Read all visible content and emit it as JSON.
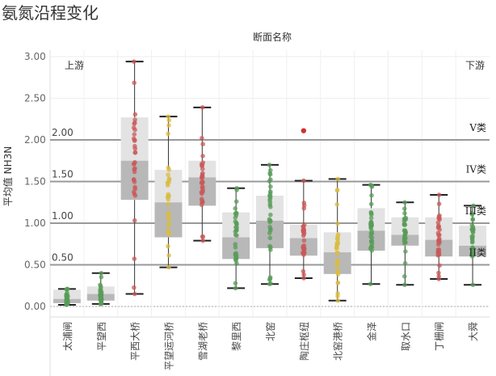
{
  "title": "氨氮沿程变化",
  "chart_data": {
    "type": "box",
    "title": "氨氮沿程变化",
    "xlabel": "断面名称",
    "ylabel": "平均值 NH3N",
    "ylim": [
      -0.1,
      3.05
    ],
    "yticks": [
      "3.00",
      "2.50",
      "2.00",
      "1.50",
      "1.00",
      "0.50",
      "0.00"
    ],
    "ytick_values": [
      3.0,
      2.5,
      2.0,
      1.5,
      1.0,
      0.5,
      0.0
    ],
    "upstream_label": "上游",
    "downstream_label": "下游",
    "reference_lines": [
      {
        "value": 2.0,
        "label": "2.00",
        "class_label": "V类"
      },
      {
        "value": 1.5,
        "label": "1.50",
        "class_label": "IV类"
      },
      {
        "value": 1.0,
        "label": "1.00",
        "class_label": "III类"
      },
      {
        "value": 0.5,
        "label": "0.50",
        "class_label": "II类"
      }
    ],
    "categories": [
      "太浦闸",
      "平望西",
      "平西大桥",
      "平望运河桥",
      "雪湖老桥",
      "黎里西",
      "北窑",
      "陶庄枢纽",
      "北窑港桥",
      "金泽",
      "取水口",
      "丁栅闸",
      "大舜"
    ],
    "colors": [
      "#3a8a3a",
      "#3a8a3a",
      "#c03a3a",
      "#d4b020",
      "#c03a3a",
      "#3a8a3a",
      "#3a8a3a",
      "#c03a3a",
      "#d4b020",
      "#3a8a3a",
      "#3a8a3a",
      "#c03a3a",
      "#3a8a3a"
    ],
    "boxes": [
      {
        "min": 0.02,
        "q1": 0.04,
        "median": 0.09,
        "q3": 0.2,
        "max": 0.21
      },
      {
        "min": 0.03,
        "q1": 0.07,
        "median": 0.15,
        "q3": 0.24,
        "max": 0.4
      },
      {
        "min": 0.15,
        "q1": 1.28,
        "median": 1.75,
        "q3": 2.27,
        "max": 2.94
      },
      {
        "min": 0.47,
        "q1": 0.83,
        "median": 1.25,
        "q3": 1.64,
        "max": 2.28
      },
      {
        "min": 0.79,
        "q1": 1.21,
        "median": 1.55,
        "q3": 1.75,
        "max": 2.39
      },
      {
        "min": 0.22,
        "q1": 0.57,
        "median": 0.83,
        "q3": 1.13,
        "max": 1.42
      },
      {
        "min": 0.27,
        "q1": 0.7,
        "median": 1.03,
        "q3": 1.33,
        "max": 1.7
      },
      {
        "min": 0.34,
        "q1": 0.61,
        "median": 0.82,
        "q3": 0.98,
        "max": 1.51
      },
      {
        "min": 0.07,
        "q1": 0.39,
        "median": 0.65,
        "q3": 0.89,
        "max": 1.53
      },
      {
        "min": 0.27,
        "q1": 0.67,
        "median": 0.91,
        "q3": 1.18,
        "max": 1.46
      },
      {
        "min": 0.26,
        "q1": 0.73,
        "median": 0.86,
        "q3": 1.07,
        "max": 1.25
      },
      {
        "min": 0.33,
        "q1": 0.6,
        "median": 0.8,
        "q3": 1.07,
        "max": 1.34
      },
      {
        "min": 0.26,
        "q1": 0.6,
        "median": 0.73,
        "q3": 0.97,
        "max": 1.21
      }
    ],
    "outliers": [
      {
        "category": "陶庄枢纽",
        "value": 2.11
      }
    ],
    "grid": true
  }
}
